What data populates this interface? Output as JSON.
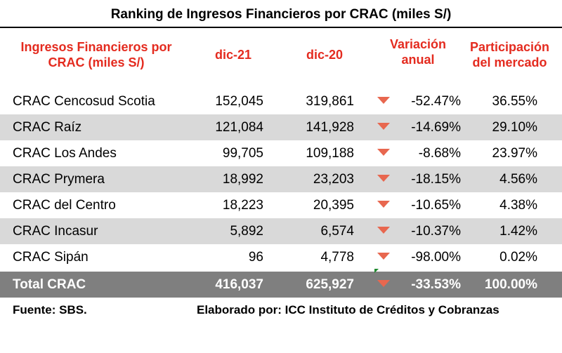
{
  "title": "Ranking de Ingresos Financieros por CRAC (miles S/)",
  "header": {
    "col_name": "Ingresos Financieros por CRAC (miles S/)",
    "col_d21": "dic-21",
    "col_d20": "dic-20",
    "col_var": "Variación anual",
    "col_par": "Participación del mercado"
  },
  "colors": {
    "header_text": "#e42b1f",
    "shade": "#d9d9d9",
    "total_bg": "#7f7f7f",
    "down_arrow": "#e8674f"
  },
  "rows": [
    {
      "name": "CRAC Cencosud Scotia",
      "d21": "152,045",
      "d20": "319,861",
      "var": "-52.47%",
      "par": "36.55%",
      "trend_icon": "down-triangle-icon"
    },
    {
      "name": "CRAC Raíz",
      "d21": "121,084",
      "d20": "141,928",
      "var": "-14.69%",
      "par": "29.10%",
      "trend_icon": "down-triangle-icon"
    },
    {
      "name": "CRAC Los Andes",
      "d21": "99,705",
      "d20": "109,188",
      "var": "-8.68%",
      "par": "23.97%",
      "trend_icon": "down-triangle-icon"
    },
    {
      "name": "CRAC Prymera",
      "d21": "18,992",
      "d20": "23,203",
      "var": "-18.15%",
      "par": "4.56%",
      "trend_icon": "down-triangle-icon"
    },
    {
      "name": "CRAC del Centro",
      "d21": "18,223",
      "d20": "20,395",
      "var": "-10.65%",
      "par": "4.38%",
      "trend_icon": "down-triangle-icon"
    },
    {
      "name": "CRAC Incasur",
      "d21": "5,892",
      "d20": "6,574",
      "var": "-10.37%",
      "par": "1.42%",
      "trend_icon": "down-triangle-icon"
    },
    {
      "name": "CRAC Sipán",
      "d21": "96",
      "d20": "4,778",
      "var": "-98.00%",
      "par": "0.02%",
      "trend_icon": "down-triangle-icon"
    }
  ],
  "total": {
    "name": "Total CRAC",
    "d21": "416,037",
    "d20": "625,927",
    "var": "-33.53%",
    "par": "100.00%",
    "trend_icon": "down-triangle-icon"
  },
  "footer": {
    "source": "Fuente: SBS.",
    "credit": "Elaborado por: ICC Instituto de Créditos y Cobranzas"
  }
}
